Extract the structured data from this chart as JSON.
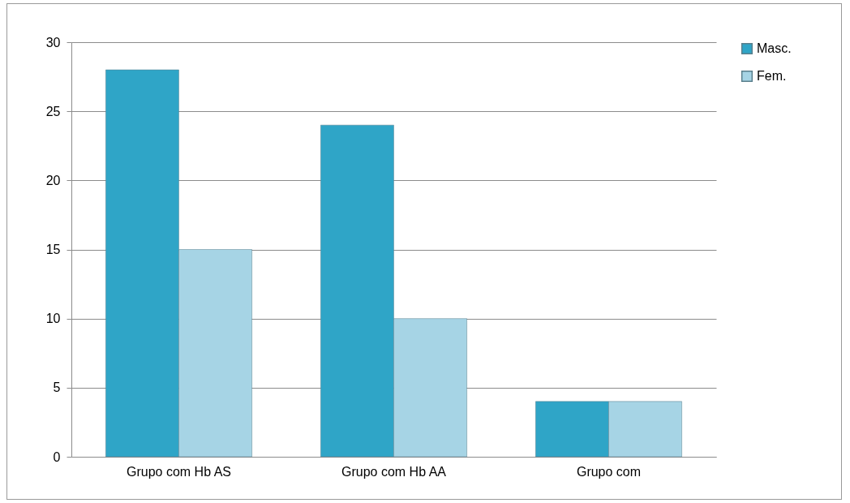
{
  "chart_data": {
    "type": "bar",
    "categories": [
      "Grupo com Hb AS",
      "Grupo com Hb AA",
      "Grupo com"
    ],
    "series": [
      {
        "name": "Masc.",
        "color": "#2fa5c7",
        "values": [
          28,
          24,
          4
        ]
      },
      {
        "name": "Fem.",
        "color": "#a6d4e5",
        "values": [
          15,
          10,
          4
        ]
      }
    ],
    "ylim": [
      0,
      30
    ],
    "yticks": [
      0,
      5,
      10,
      15,
      20,
      25,
      30
    ],
    "grid": "y",
    "legend": "right"
  }
}
